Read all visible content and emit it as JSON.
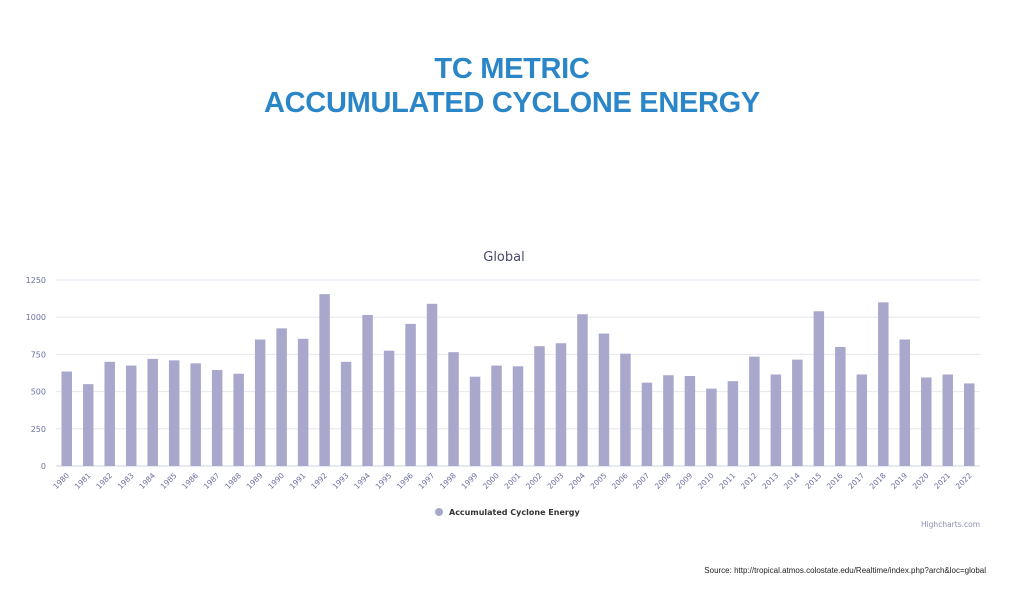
{
  "page": {
    "title_line1": "TC METRIC",
    "title_line2": "ACCUMULATED CYCLONE ENERGY",
    "source_text": "Source:  http://tropical.atmos.colostate.edu/Realtime/index.php?arch&loc=global",
    "credits": "Highcharts.com"
  },
  "colors": {
    "title": "#2a86c6",
    "bar": "#a8a8cc",
    "grid": "#e6e6f0",
    "axis_text": "#6b6fa0",
    "chart_title": "#4a4a6a"
  },
  "chart_data": {
    "type": "bar",
    "title": "Global",
    "xlabel": "",
    "ylabel": "",
    "ylim": [
      0,
      1250
    ],
    "yticks": [
      0,
      250,
      500,
      750,
      1000,
      1250
    ],
    "grid": true,
    "legend_position": "bottom-center",
    "categories": [
      "1980",
      "1981",
      "1982",
      "1983",
      "1984",
      "1985",
      "1986",
      "1987",
      "1988",
      "1989",
      "1990",
      "1991",
      "1992",
      "1993",
      "1994",
      "1995",
      "1996",
      "1997",
      "1998",
      "1999",
      "2000",
      "2001",
      "2002",
      "2003",
      "2004",
      "2005",
      "2006",
      "2007",
      "2008",
      "2009",
      "2010",
      "2011",
      "2012",
      "2013",
      "2014",
      "2015",
      "2016",
      "2017",
      "2018",
      "2019",
      "2020",
      "2021",
      "2022"
    ],
    "series": [
      {
        "name": "Accumulated Cyclone Energy",
        "values": [
          635,
          550,
          700,
          675,
          720,
          710,
          690,
          645,
          620,
          850,
          925,
          855,
          1155,
          700,
          1015,
          775,
          955,
          1090,
          765,
          600,
          675,
          670,
          805,
          825,
          1020,
          890,
          755,
          560,
          610,
          605,
          520,
          570,
          735,
          615,
          715,
          1040,
          800,
          615,
          1100,
          850,
          595,
          615,
          555
        ]
      }
    ]
  }
}
